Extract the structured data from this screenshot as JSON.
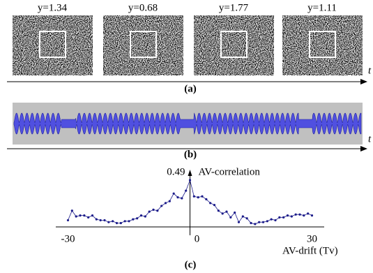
{
  "panel_a": {
    "frames": [
      "y=1.34",
      "y=0.68",
      "y=1.77",
      "y=1.11"
    ],
    "axis_label": "t",
    "caption": "(a)"
  },
  "panel_b": {
    "axis_label": "t",
    "caption": "(b)"
  },
  "chart_data": {
    "type": "line",
    "y_label": "AV-correlation",
    "x_label": "AV-drift (Tv)",
    "x": [
      -30,
      -29,
      -28,
      -27,
      -26,
      -25,
      -24,
      -23,
      -22,
      -21,
      -20,
      -19,
      -18,
      -17,
      -16,
      -15,
      -14,
      -13,
      -12,
      -11,
      -10,
      -9,
      -8,
      -7,
      -6,
      -5,
      -4,
      -3,
      -2,
      -1,
      0,
      1,
      2,
      3,
      4,
      5,
      6,
      7,
      8,
      9,
      10,
      11,
      12,
      13,
      14,
      15,
      16,
      17,
      18,
      19,
      20,
      21,
      22,
      23,
      24,
      25,
      26,
      27,
      28,
      29,
      30
    ],
    "values": [
      0.07,
      0.17,
      0.11,
      0.12,
      0.12,
      0.1,
      0.12,
      0.08,
      0.07,
      0.07,
      0.05,
      0.06,
      0.04,
      0.04,
      0.06,
      0.06,
      0.08,
      0.09,
      0.12,
      0.11,
      0.16,
      0.18,
      0.17,
      0.22,
      0.25,
      0.27,
      0.35,
      0.31,
      0.3,
      0.38,
      0.49,
      0.32,
      0.31,
      0.32,
      0.29,
      0.25,
      0.23,
      0.17,
      0.14,
      0.16,
      0.1,
      0.15,
      0.05,
      0.11,
      0.09,
      0.04,
      0.03,
      0.05,
      0.05,
      0.06,
      0.08,
      0.07,
      0.1,
      0.1,
      0.12,
      0.11,
      0.13,
      0.13,
      0.12,
      0.14,
      0.12
    ],
    "color": "#1c1c8a",
    "xlim": [
      -33,
      33
    ],
    "ylim": [
      0,
      0.6
    ],
    "xticks": [
      -30,
      0,
      30
    ],
    "yticks": [
      0.49
    ]
  },
  "caption_c": "(c)"
}
